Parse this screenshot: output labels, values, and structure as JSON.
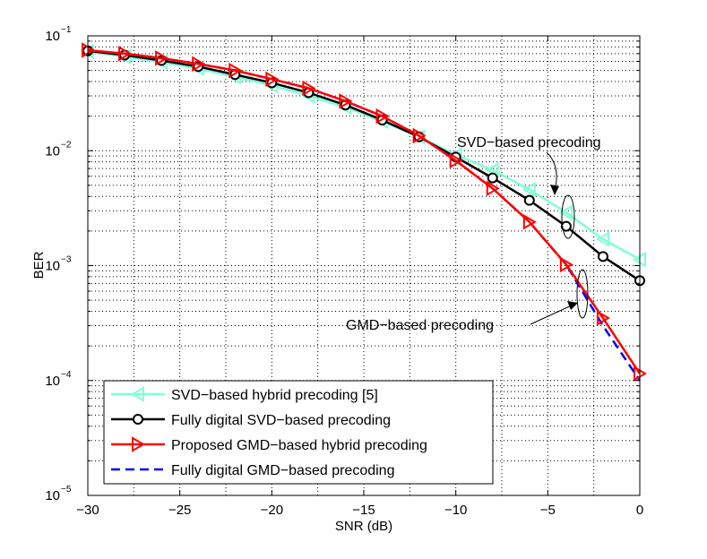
{
  "chart_data": {
    "type": "line",
    "title": "",
    "xlabel": "SNR (dB)",
    "ylabel": "BER",
    "xlim": [
      -30,
      0
    ],
    "ylim": [
      1e-05,
      0.1
    ],
    "yscale": "log",
    "grid": true,
    "x_ticks": [
      -30,
      -25,
      -20,
      -15,
      -10,
      -5,
      0
    ],
    "x_tick_labels": [
      "−30",
      "−25",
      "−20",
      "−15",
      "−10",
      "−5",
      "0"
    ],
    "y_ticks": [
      {
        "value": 0.1,
        "base": "10",
        "exp": "−1"
      },
      {
        "value": 0.01,
        "base": "10",
        "exp": "−2"
      },
      {
        "value": 0.001,
        "base": "10",
        "exp": "−3"
      },
      {
        "value": 0.0001,
        "base": "10",
        "exp": "−4"
      },
      {
        "value": 1e-05,
        "base": "10",
        "exp": "−5"
      }
    ],
    "legend_position": "bottom-left",
    "series": [
      {
        "name": "SVD−based hybrid precoding [5]",
        "color": "#7fffd4",
        "marker": "triangle-left",
        "dash": "solid",
        "x": [
          -30,
          -28,
          -26,
          -24,
          -22,
          -20,
          -18,
          -16,
          -14,
          -12,
          -10,
          -8,
          -6,
          -4,
          -2,
          0
        ],
        "values": [
          0.073,
          0.066,
          0.059,
          0.052,
          0.044,
          0.037,
          0.03,
          0.024,
          0.018,
          0.0132,
          0.0092,
          0.0068,
          0.0046,
          0.0029,
          0.0017,
          0.00113
        ]
      },
      {
        "name": "Fully digital SVD−based precoding",
        "color": "#000000",
        "marker": "circle",
        "dash": "solid",
        "x": [
          -30,
          -28,
          -26,
          -24,
          -22,
          -20,
          -18,
          -16,
          -14,
          -12,
          -10,
          -8,
          -6,
          -4,
          -2,
          0
        ],
        "values": [
          0.074,
          0.068,
          0.061,
          0.054,
          0.046,
          0.039,
          0.032,
          0.025,
          0.0185,
          0.0132,
          0.0088,
          0.0058,
          0.0037,
          0.0022,
          0.0012,
          0.00074
        ]
      },
      {
        "name": "Proposed GMD−based hybrid precoding",
        "color": "#ff0000",
        "marker": "triangle-right",
        "dash": "solid",
        "x": [
          -30,
          -28,
          -26,
          -24,
          -22,
          -20,
          -18,
          -16,
          -14,
          -12,
          -10,
          -8,
          -6,
          -4,
          -2,
          0
        ],
        "values": [
          0.075,
          0.07,
          0.064,
          0.057,
          0.05,
          0.042,
          0.035,
          0.027,
          0.02,
          0.0135,
          0.0082,
          0.0047,
          0.0024,
          0.00102,
          0.00035,
          0.000115
        ]
      },
      {
        "name": "Fully digital GMD−based precoding",
        "color": "#0000ff",
        "marker": "none",
        "dash": "dashed",
        "x": [
          -30,
          -28,
          -26,
          -24,
          -22,
          -20,
          -18,
          -16,
          -14,
          -12,
          -10,
          -8,
          -6,
          -4,
          -2,
          0
        ],
        "values": [
          0.075,
          0.07,
          0.064,
          0.057,
          0.05,
          0.042,
          0.035,
          0.027,
          0.02,
          0.0135,
          0.0082,
          0.0047,
          0.0024,
          0.00102,
          0.0003,
          0.0001
        ]
      }
    ],
    "annotations": [
      {
        "text": "SVD−based precoding",
        "target": {
          "x": -4,
          "y": 0.0026
        }
      },
      {
        "text": "GMD−based precoding",
        "target": {
          "x": -3.2,
          "y": 0.00062
        }
      }
    ]
  }
}
